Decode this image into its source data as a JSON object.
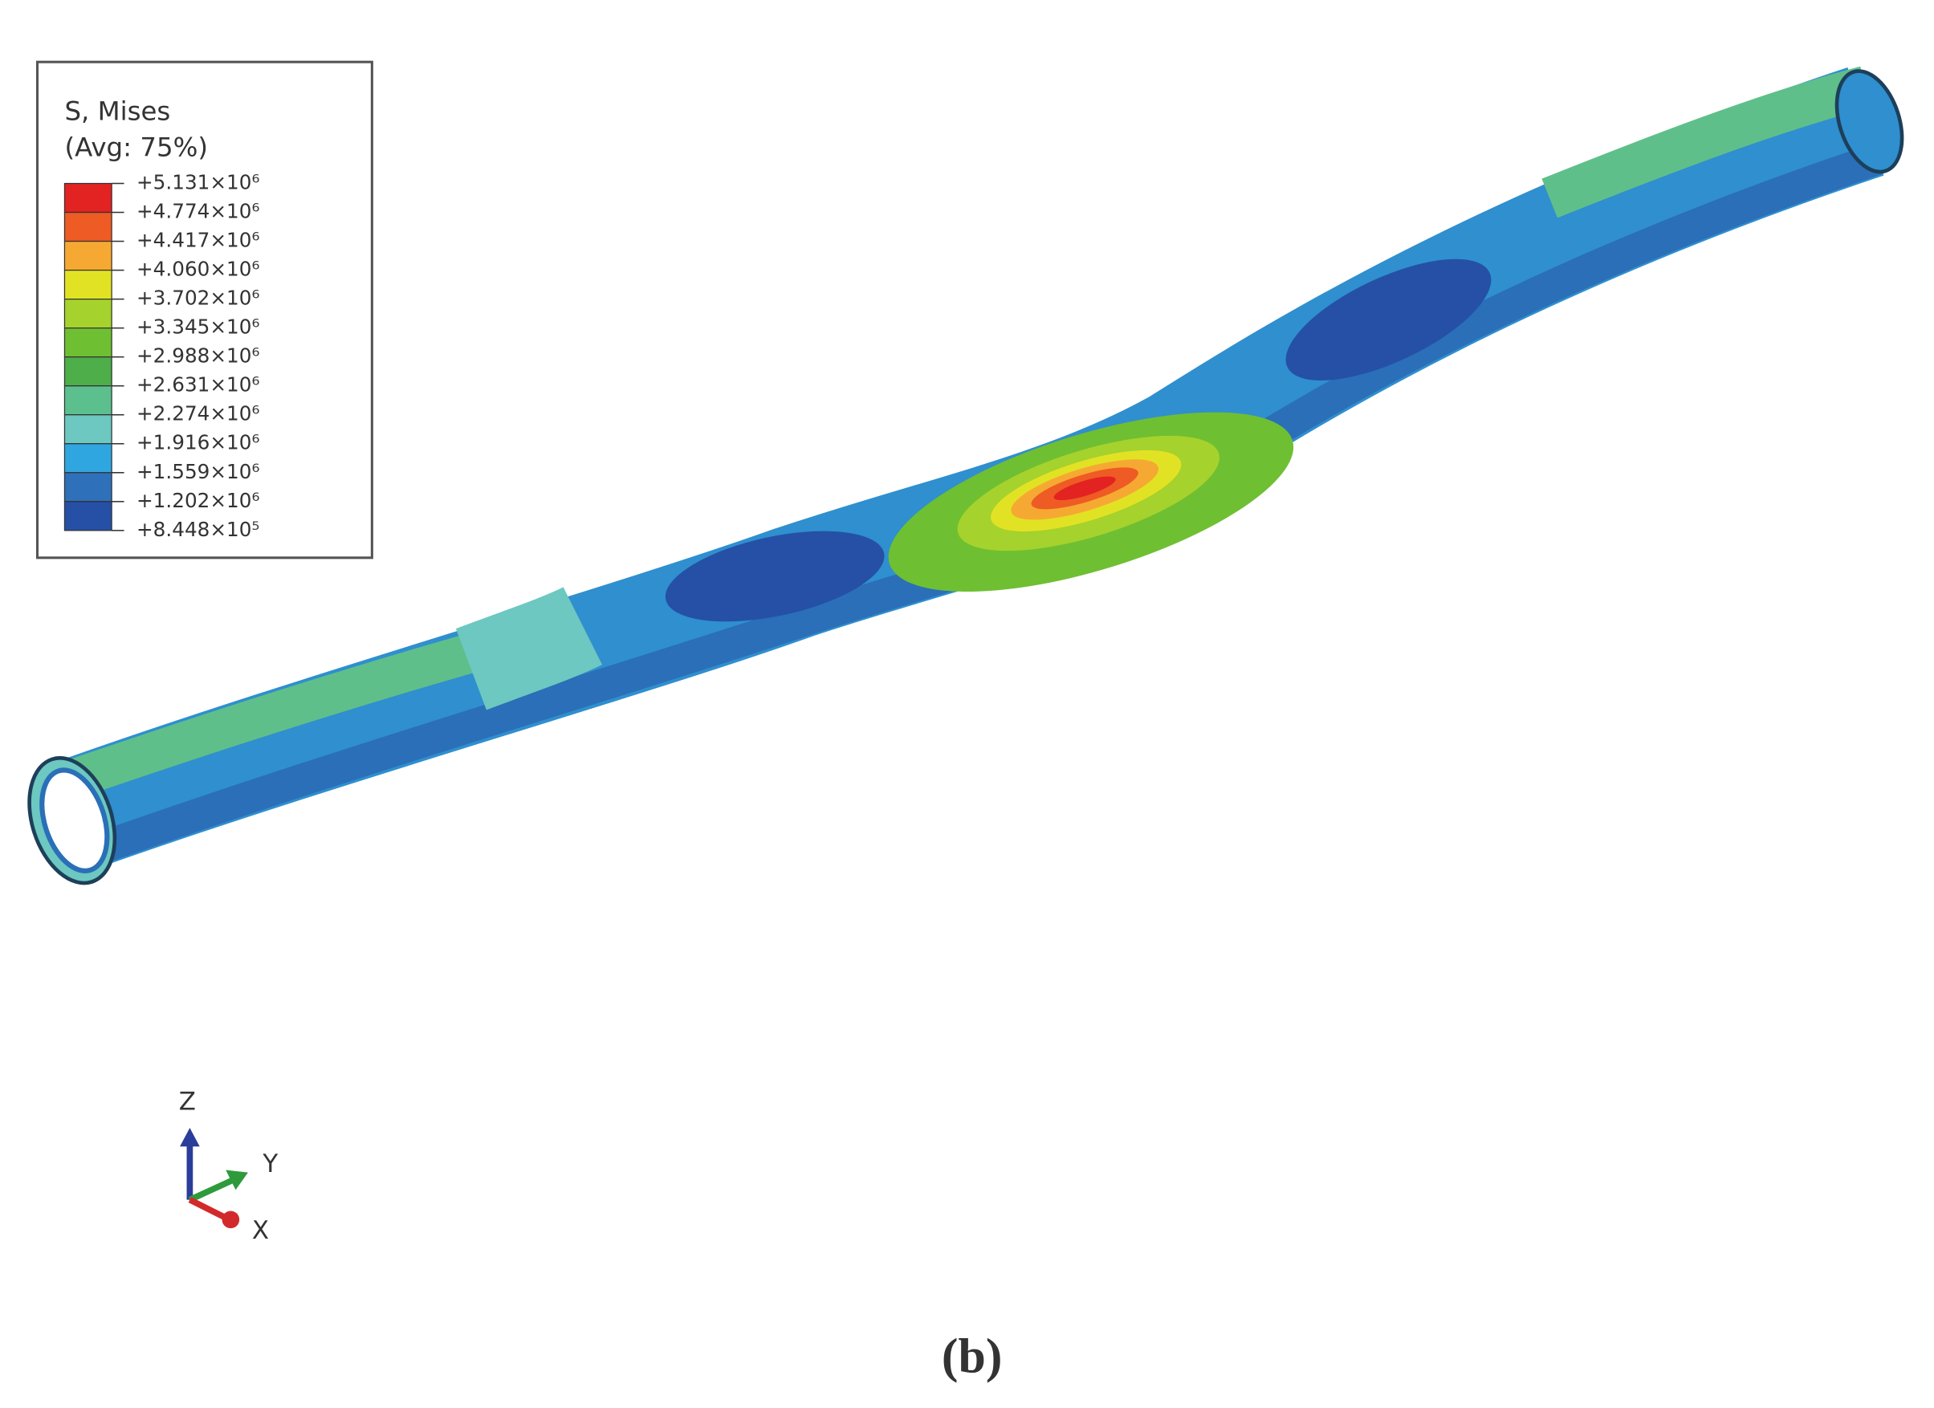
{
  "legend": {
    "title": "S, Mises",
    "subtitle": "(Avg: 75%)",
    "levels": [
      "+5.131×10⁶",
      "+4.774×10⁶",
      "+4.417×10⁶",
      "+4.060×10⁶",
      "+3.702×10⁶",
      "+3.345×10⁶",
      "+2.988×10⁶",
      "+2.631×10⁶",
      "+2.274×10⁶",
      "+1.916×10⁶",
      "+1.559×10⁶",
      "+1.202×10⁶",
      "+8.448×10⁵"
    ],
    "colors": [
      "#e32222",
      "#ee5b24",
      "#f6a932",
      "#e2e224",
      "#a5d22c",
      "#6fbf32",
      "#4eae4a",
      "#5cbf8e",
      "#6cc8c0",
      "#2fa6e0",
      "#2f70ba",
      "#2550a6"
    ]
  },
  "triad": {
    "z": "Z",
    "y": "Y",
    "x": "X"
  },
  "caption": "(b)"
}
